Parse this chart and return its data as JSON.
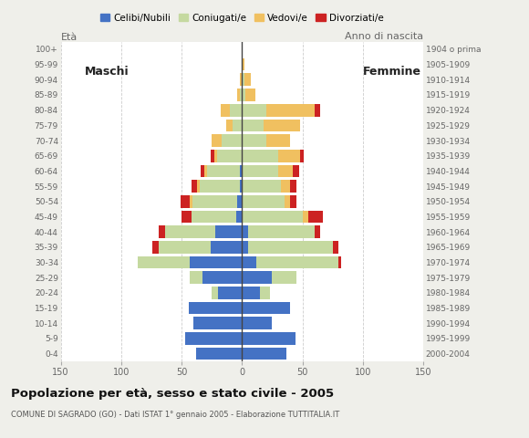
{
  "age_groups": [
    "0-4",
    "5-9",
    "10-14",
    "15-19",
    "20-24",
    "25-29",
    "30-34",
    "35-39",
    "40-44",
    "45-49",
    "50-54",
    "55-59",
    "60-64",
    "65-69",
    "70-74",
    "75-79",
    "80-84",
    "85-89",
    "90-94",
    "95-99",
    "100+"
  ],
  "birth_years": [
    "2000-2004",
    "1995-1999",
    "1990-1994",
    "1985-1989",
    "1980-1984",
    "1975-1979",
    "1970-1974",
    "1965-1969",
    "1960-1964",
    "1955-1959",
    "1950-1954",
    "1945-1949",
    "1940-1944",
    "1935-1939",
    "1930-1934",
    "1925-1929",
    "1920-1924",
    "1915-1919",
    "1910-1914",
    "1905-1909",
    "1904 o prima"
  ],
  "males_celibe": [
    38,
    47,
    40,
    44,
    20,
    33,
    43,
    26,
    22,
    5,
    4,
    2,
    2,
    0,
    0,
    0,
    0,
    0,
    0,
    0,
    0
  ],
  "males_coniugato": [
    0,
    0,
    0,
    0,
    5,
    10,
    43,
    43,
    42,
    37,
    37,
    33,
    27,
    21,
    17,
    8,
    10,
    2,
    0,
    0,
    0
  ],
  "males_vedovo": [
    0,
    0,
    0,
    0,
    0,
    0,
    0,
    0,
    0,
    0,
    2,
    2,
    2,
    2,
    8,
    5,
    8,
    2,
    2,
    0,
    0
  ],
  "males_divorziato": [
    0,
    0,
    0,
    0,
    0,
    0,
    0,
    5,
    5,
    8,
    8,
    5,
    3,
    3,
    0,
    0,
    0,
    0,
    0,
    0,
    0
  ],
  "females_nubile": [
    37,
    44,
    25,
    40,
    15,
    25,
    12,
    5,
    5,
    0,
    0,
    0,
    0,
    0,
    0,
    0,
    0,
    0,
    0,
    0,
    0
  ],
  "females_coniugata": [
    0,
    0,
    0,
    0,
    8,
    20,
    68,
    70,
    55,
    50,
    35,
    32,
    30,
    30,
    20,
    18,
    20,
    3,
    2,
    0,
    0
  ],
  "females_vedova": [
    0,
    0,
    0,
    0,
    0,
    0,
    0,
    0,
    0,
    5,
    5,
    8,
    12,
    18,
    20,
    30,
    40,
    8,
    5,
    2,
    0
  ],
  "females_divorziata": [
    0,
    0,
    0,
    0,
    0,
    0,
    2,
    5,
    5,
    12,
    5,
    5,
    5,
    3,
    0,
    0,
    5,
    0,
    0,
    0,
    0
  ],
  "color_celibe": "#4472c4",
  "color_coniugato": "#c5d9a0",
  "color_vedovo": "#f0c060",
  "color_divorziato": "#cc2222",
  "xlim": 150,
  "xtick_vals": [
    -150,
    -100,
    -50,
    0,
    50,
    100,
    150
  ],
  "title": "Popolazione per età, sesso e stato civile - 2005",
  "subtitle": "COMUNE DI SAGRADO (GO) - Dati ISTAT 1° gennaio 2005 - Elaborazione TUTTITALIA.IT",
  "legend_labels": [
    "Celibi/Nubili",
    "Coniugati/e",
    "Vedovi/e",
    "Divorziati/e"
  ],
  "label_eta": "Età",
  "label_anno": "Anno di nascita",
  "label_maschi": "Maschi",
  "label_femmine": "Femmine",
  "bg_color": "#efefea",
  "plot_bg": "#ffffff",
  "grid_color": "#cccccc",
  "center_line_color": "#444444",
  "tick_color": "#666666"
}
